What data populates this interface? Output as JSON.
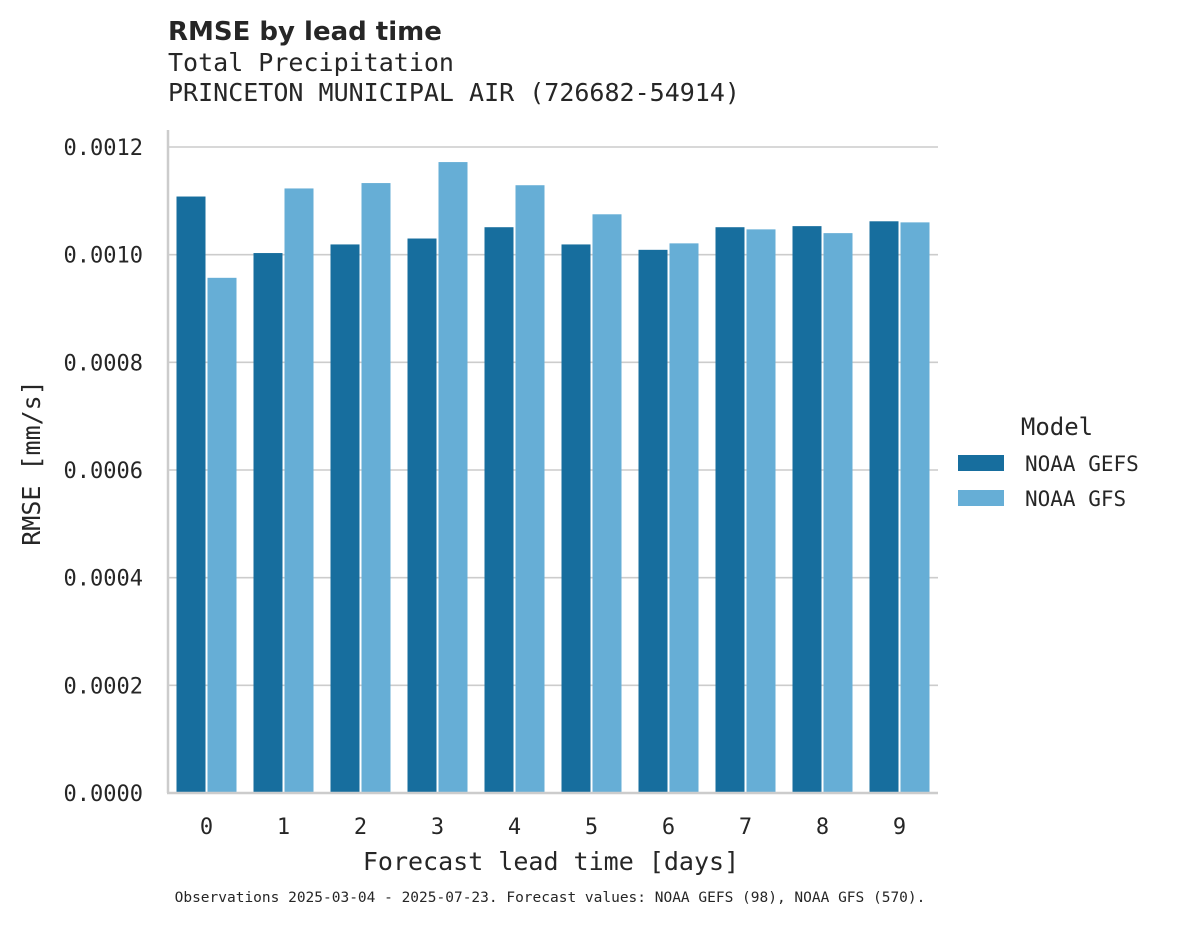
{
  "chart_data": {
    "type": "bar",
    "title": "RMSE by lead time",
    "subtitle_lines": [
      "Total Precipitation",
      "PRINCETON MUNICIPAL AIR (726682-54914)"
    ],
    "xlabel": "Forecast lead time [days]",
    "ylabel": "RMSE [mm/s]",
    "categories": [
      "0",
      "1",
      "2",
      "3",
      "4",
      "5",
      "6",
      "7",
      "8",
      "9"
    ],
    "series": [
      {
        "name": "NOAA GEFS",
        "color": "#176e9e",
        "values": [
          0.001108,
          0.001003,
          0.001019,
          0.00103,
          0.001051,
          0.001019,
          0.001009,
          0.001051,
          0.001053,
          0.001062
        ]
      },
      {
        "name": "NOAA GFS",
        "color": "#66aed6",
        "values": [
          0.000957,
          0.001123,
          0.001133,
          0.001172,
          0.001129,
          0.001075,
          0.001021,
          0.001047,
          0.00104,
          0.00106
        ]
      }
    ],
    "ylim": [
      0,
      0.0012
    ],
    "yticks": [
      "0.0000",
      "0.0002",
      "0.0004",
      "0.0006",
      "0.0008",
      "0.0010",
      "0.0012"
    ],
    "grid": "horizontal",
    "legend": {
      "title": "Model",
      "placement": "right"
    },
    "footnote": "Observations 2025-03-04 - 2025-07-23. Forecast values: NOAA GEFS (98), NOAA GFS (570)."
  }
}
